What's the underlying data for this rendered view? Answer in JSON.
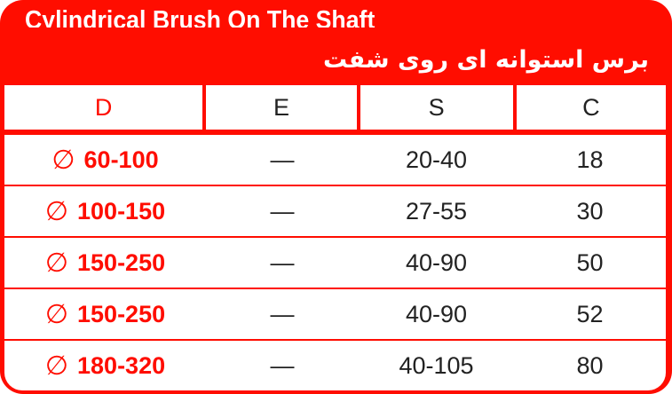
{
  "title_en": "Cylindrical Brush On The Shaft",
  "title_fa": "برس استوانه ای روی شفت",
  "accent_color": "#ff0d00",
  "headers": [
    "D",
    "E",
    "S",
    "C"
  ],
  "diameter_symbol": "∅",
  "rows": [
    {
      "D": "60-100",
      "E": "—",
      "S": "20-40",
      "C": "18"
    },
    {
      "D": "100-150",
      "E": "—",
      "S": "27-55",
      "C": "30"
    },
    {
      "D": "150-250",
      "E": "—",
      "S": "40-90",
      "C": "50"
    },
    {
      "D": "150-250",
      "E": "—",
      "S": "40-90",
      "C": "52"
    },
    {
      "D": "180-320",
      "E": "—",
      "S": "40-105",
      "C": "80"
    }
  ]
}
